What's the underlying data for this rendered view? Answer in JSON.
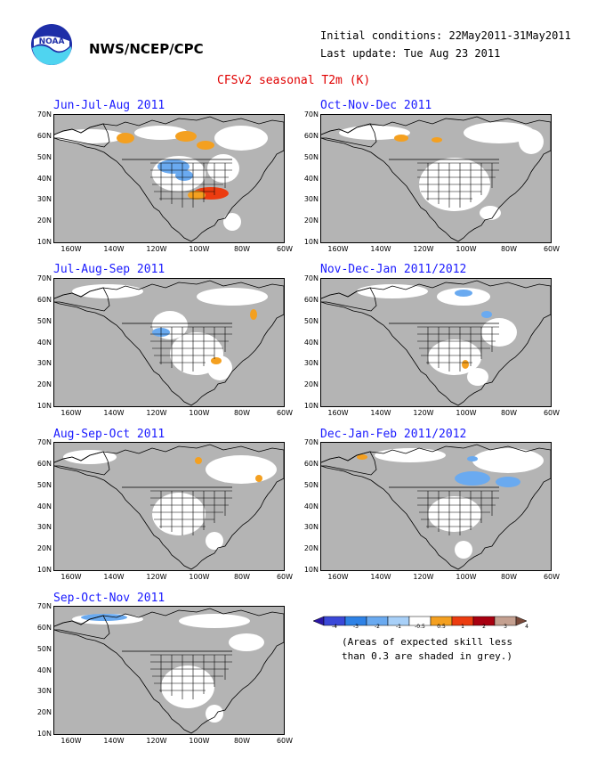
{
  "header": {
    "org": "NWS/NCEP/CPC",
    "initial_conditions": "Initial conditions: 22May2011-31May2011",
    "last_update": "Last update: Tue Aug 23 2011",
    "title": "CFSv2 seasonal T2m (K)",
    "logo_text": "NOAA"
  },
  "panels": [
    {
      "title": "Jun-Jul-Aug 2011"
    },
    {
      "title": "Oct-Nov-Dec 2011"
    },
    {
      "title": "Jul-Aug-Sep 2011"
    },
    {
      "title": "Nov-Dec-Jan 2011/2012"
    },
    {
      "title": "Aug-Sep-Oct 2011"
    },
    {
      "title": "Dec-Jan-Feb 2011/2012"
    },
    {
      "title": "Sep-Oct-Nov 2011"
    }
  ],
  "axes": {
    "y_ticks": [
      "70N",
      "60N",
      "50N",
      "40N",
      "30N",
      "20N",
      "10N"
    ],
    "x_ticks": [
      "160W",
      "140W",
      "120W",
      "100W",
      "80W",
      "60W"
    ]
  },
  "legend": {
    "labels": [
      "-4",
      "-3",
      "-2",
      "-1",
      "-0.5",
      "0.5",
      "1",
      "2",
      "3",
      "4"
    ],
    "colors": [
      "#2a16a6",
      "#3a48d8",
      "#2e82e6",
      "#6aaaf0",
      "#a8d0f8",
      "#ffffff",
      "#f4a020",
      "#ec3c10",
      "#a80010",
      "#c4a090",
      "#7a4a3a"
    ],
    "note_line1": "(Areas of expected skill less",
    "note_line2": "than 0.3 are shaded in grey.)"
  },
  "colors": {
    "skill_grey": "#b4b4b4",
    "warm_orange": "#f4a020",
    "warm_red": "#ec3c10",
    "cool_blue": "#6aaaf0",
    "title_blue": "#1a1aff",
    "title_red": "#e00000"
  }
}
